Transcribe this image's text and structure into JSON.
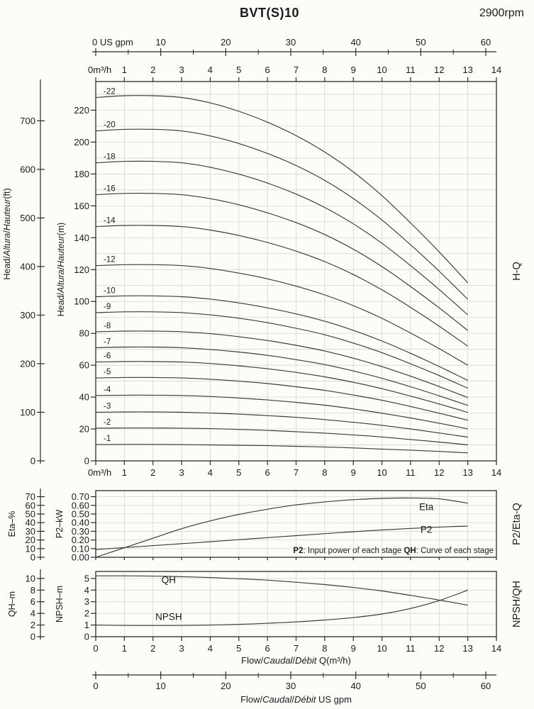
{
  "header": {
    "title": "BVT(S)10",
    "rpm": "2900rpm"
  },
  "chart_data": [
    {
      "name": "hq",
      "type": "line",
      "right_label": "H-Q",
      "x_range": [
        0,
        14
      ],
      "x": [
        0,
        1,
        2,
        3,
        4,
        5,
        6,
        7,
        8,
        9,
        10,
        11,
        12,
        13
      ],
      "gpm_top": {
        "values": [
          0,
          10,
          20,
          30,
          40,
          50,
          60
        ],
        "labels": [
          "0 US gpm",
          "10",
          "20",
          "30",
          "40",
          "50",
          "60"
        ],
        "minor_step": 5
      },
      "x_axis_top": {
        "values": [
          0,
          1,
          2,
          3,
          4,
          5,
          6,
          7,
          8,
          9,
          10,
          11,
          12,
          13,
          14
        ],
        "labels": [
          "0m³/h",
          "1",
          "2",
          "3",
          "4",
          "5",
          "6",
          "7",
          "8",
          "9",
          "10",
          "11",
          "12",
          "13",
          "14"
        ]
      },
      "x_axis_bottom": {
        "values": [
          0,
          1,
          2,
          3,
          4,
          5,
          6,
          7,
          8,
          9,
          10,
          11,
          12,
          13,
          14
        ],
        "labels": [
          "0m³/h",
          "1",
          "2",
          "3",
          "4",
          "5",
          "6",
          "7",
          "8",
          "9",
          "10",
          "11",
          "12",
          "13",
          "14"
        ]
      },
      "y_inner": {
        "max": 238,
        "grid_step": 10,
        "values": [
          0,
          20,
          40,
          60,
          80,
          100,
          120,
          140,
          160,
          180,
          200,
          220
        ],
        "labels": [
          "0",
          "20",
          "40",
          "60",
          "80",
          "100",
          "120",
          "140",
          "160",
          "180",
          "200",
          "220"
        ],
        "title_parts": [
          {
            "text": "Head/"
          },
          {
            "text": "Altura",
            "italic": true
          },
          {
            "text": "/"
          },
          {
            "text": "Hauteur",
            "italic": true
          },
          {
            "text": "(m)"
          }
        ]
      },
      "y_outer": {
        "to_inner": 0.3048,
        "values": [
          0,
          100,
          200,
          300,
          400,
          500,
          600,
          700
        ],
        "labels": [
          "0",
          "100",
          "200",
          "300",
          "400",
          "500",
          "600",
          "700"
        ],
        "title_parts": [
          {
            "text": "Head/"
          },
          {
            "text": "Altura",
            "italic": true
          },
          {
            "text": "/"
          },
          {
            "text": "Hauteur",
            "italic": true
          },
          {
            "text": "(ft)"
          }
        ]
      },
      "stage_labels": true,
      "series": [
        {
          "name": "-22",
          "values": [
            228,
            229.1,
            229.1,
            228,
            224.6,
            219.3,
            212.5,
            204.1,
            193.8,
            181.3,
            166.4,
            149.3,
            131.1,
            111.7
          ]
        },
        {
          "name": "-20",
          "values": [
            207,
            208.0,
            208.0,
            207,
            203.9,
            199.1,
            192.9,
            185.3,
            176.0,
            164.6,
            151.1,
            135.6,
            119.0,
            101.4
          ]
        },
        {
          "name": "-18",
          "values": [
            187,
            187.9,
            187.9,
            187,
            184.2,
            179.9,
            174.3,
            167.4,
            159.0,
            148.7,
            136.5,
            122.5,
            107.5,
            91.6
          ]
        },
        {
          "name": "-16",
          "values": [
            167,
            167.8,
            167.8,
            167,
            164.5,
            160.7,
            155.6,
            149.5,
            142.0,
            132.8,
            121.9,
            109.4,
            96.0,
            81.8
          ]
        },
        {
          "name": "-14",
          "values": [
            147,
            147.7,
            147.7,
            147,
            144.8,
            141.4,
            137.0,
            131.6,
            125.0,
            116.9,
            107.3,
            96.3,
            84.5,
            72.0
          ]
        },
        {
          "name": "-12",
          "values": [
            122.5,
            123.1,
            123.1,
            122.5,
            120.7,
            117.8,
            114.2,
            109.6,
            104.1,
            97.4,
            89.4,
            80.2,
            70.4,
            60.0
          ]
        },
        {
          "name": "-10",
          "values": [
            103,
            103.5,
            103.5,
            103,
            101.5,
            99.1,
            96.0,
            92.2,
            87.6,
            81.9,
            75.2,
            67.5,
            59.2,
            50.5
          ]
        },
        {
          "name": "-9",
          "values": [
            93,
            93.5,
            93.5,
            93,
            91.6,
            89.5,
            86.7,
            83.2,
            79.1,
            73.9,
            67.9,
            60.9,
            53.5,
            45.6
          ]
        },
        {
          "name": "-8",
          "values": [
            81,
            81.4,
            81.4,
            81,
            79.8,
            77.9,
            75.5,
            72.5,
            68.9,
            64.4,
            59.1,
            53.1,
            46.6,
            39.7
          ]
        },
        {
          "name": "-7",
          "values": [
            71,
            71.4,
            71.4,
            71,
            69.9,
            68.3,
            66.2,
            63.5,
            60.4,
            56.4,
            51.8,
            46.5,
            40.8,
            34.8
          ]
        },
        {
          "name": "-6",
          "values": [
            62,
            62.3,
            62.3,
            62,
            61.1,
            59.6,
            57.8,
            55.5,
            52.7,
            49.3,
            45.3,
            40.6,
            35.7,
            30.4
          ]
        },
        {
          "name": "-5",
          "values": [
            52,
            52.3,
            52.3,
            52,
            51.2,
            50.0,
            48.5,
            46.5,
            44.2,
            41.3,
            38.0,
            34.1,
            29.9,
            25.5
          ]
        },
        {
          "name": "-4",
          "values": [
            41,
            41.2,
            41.2,
            41,
            40.4,
            39.4,
            38.2,
            36.7,
            34.9,
            32.6,
            29.9,
            26.9,
            23.6,
            20.1
          ]
        },
        {
          "name": "-3",
          "values": [
            30.5,
            30.7,
            30.7,
            30.5,
            30.0,
            29.3,
            28.4,
            27.3,
            25.9,
            24.2,
            22.3,
            20.0,
            17.5,
            14.9
          ]
        },
        {
          "name": "-2",
          "values": [
            20.5,
            20.6,
            20.6,
            20.5,
            20.2,
            19.7,
            19.1,
            18.3,
            17.4,
            16.3,
            15.0,
            13.4,
            11.8,
            10.0
          ]
        },
        {
          "name": "-1",
          "values": [
            10.2,
            10.3,
            10.3,
            10.2,
            10.0,
            9.8,
            9.5,
            9.1,
            8.7,
            8.1,
            7.4,
            6.7,
            5.9,
            5.0
          ]
        }
      ]
    },
    {
      "name": "p2eta",
      "type": "line",
      "right_label": "P2/Eta-Q",
      "x": [
        0,
        1,
        2,
        3,
        4,
        5,
        6,
        7,
        8,
        9,
        10,
        11,
        12,
        13
      ],
      "y_inner": {
        "max": 0.77,
        "grid_step": 0.1,
        "values": [
          0,
          0.1,
          0.2,
          0.3,
          0.4,
          0.5,
          0.6,
          0.7
        ],
        "labels": [
          "0.00",
          "0.10",
          "0.20",
          "0.30",
          "0.40",
          "0.50",
          "0.60",
          "0.70"
        ],
        "title_parts": [
          {
            "text": "P2–kW"
          }
        ]
      },
      "y_outer": {
        "to_inner": 0.01,
        "values": [
          0,
          10,
          20,
          30,
          40,
          50,
          60,
          70
        ],
        "labels": [
          "0",
          "10",
          "20",
          "30",
          "40",
          "50",
          "60",
          "70"
        ],
        "title_parts": [
          {
            "text": "Eta–%"
          }
        ]
      },
      "series": [
        {
          "name": "Eta",
          "factor": 0.01,
          "values": [
            0,
            11,
            22,
            33,
            42,
            49.5,
            55.5,
            60.5,
            64,
            66.5,
            68,
            68.5,
            67.5,
            62.5
          ]
        },
        {
          "name": "P2",
          "values": [
            0.09,
            0.112,
            0.134,
            0.157,
            0.18,
            0.203,
            0.227,
            0.25,
            0.273,
            0.295,
            0.315,
            0.333,
            0.349,
            0.36
          ]
        }
      ],
      "annotations": [
        {
          "text": "Eta",
          "q": 11.55,
          "v": 0.545
        },
        {
          "text": "P2",
          "q": 11.55,
          "v": 0.282
        }
      ],
      "note_parts": [
        {
          "text": "P2",
          "bold": true
        },
        {
          "text": ": Input power of each stage "
        },
        {
          "text": "QH",
          "bold": true
        },
        {
          "text": ": Curve of each stage"
        }
      ]
    },
    {
      "name": "npshqh",
      "type": "line",
      "right_label": "NPSH/QH",
      "x": [
        0,
        1,
        2,
        3,
        4,
        5,
        6,
        7,
        8,
        9,
        10,
        11,
        12,
        13
      ],
      "x_axis_bottom": {
        "values": [
          0,
          1,
          2,
          3,
          4,
          5,
          6,
          7,
          8,
          9,
          10,
          11,
          12,
          13,
          14
        ],
        "labels": [
          "0",
          "1",
          "2",
          "3",
          "4",
          "5",
          "6",
          "7",
          "8",
          "9",
          "10",
          "11",
          "12",
          "13",
          "14"
        ]
      },
      "x_caption_parts": [
        {
          "text": "Flow/"
        },
        {
          "text": "Caudal",
          "italic": true
        },
        {
          "text": "/"
        },
        {
          "text": "Débit",
          "italic": true
        },
        {
          "text": " Q(m³/h)"
        }
      ],
      "y_inner": {
        "max": 5.6,
        "grid_step": 1,
        "values": [
          0,
          1,
          2,
          3,
          4,
          5
        ],
        "labels": [
          "0",
          "1",
          "2",
          "3",
          "4",
          "5"
        ],
        "title_parts": [
          {
            "text": "NPSH–m"
          }
        ]
      },
      "y_outer": {
        "to_inner": 0.5,
        "values": [
          0,
          2,
          4,
          6,
          8,
          10
        ],
        "labels": [
          "0",
          "2",
          "4",
          "6",
          "8",
          "10"
        ],
        "title_parts": [
          {
            "text": "QH–m"
          }
        ]
      },
      "series": [
        {
          "name": "QH",
          "factor": 0.5,
          "values": [
            10.45,
            10.45,
            10.4,
            10.3,
            10.15,
            9.95,
            9.7,
            9.35,
            8.95,
            8.45,
            7.85,
            7.1,
            6.3,
            5.4
          ]
        },
        {
          "name": "NPSH",
          "values": [
            1.0,
            0.97,
            0.96,
            0.97,
            1.0,
            1.06,
            1.15,
            1.27,
            1.43,
            1.64,
            1.95,
            2.42,
            3.1,
            4.0
          ]
        }
      ],
      "annotations": [
        {
          "text": "QH",
          "q": 2.55,
          "v": 4.6
        },
        {
          "text": "NPSH",
          "q": 2.55,
          "v": 1.42
        }
      ],
      "gpm_bottom": {
        "values": [
          0,
          10,
          20,
          30,
          40,
          50,
          60
        ],
        "labels": [
          "0",
          "10",
          "20",
          "30",
          "40",
          "50",
          "60"
        ],
        "minor_step": 5,
        "caption_parts": [
          {
            "text": "Flow/"
          },
          {
            "text": "Caudal",
            "italic": true
          },
          {
            "text": "/"
          },
          {
            "text": "Débit",
            "italic": true
          },
          {
            "text": "  US gpm"
          }
        ]
      }
    }
  ]
}
